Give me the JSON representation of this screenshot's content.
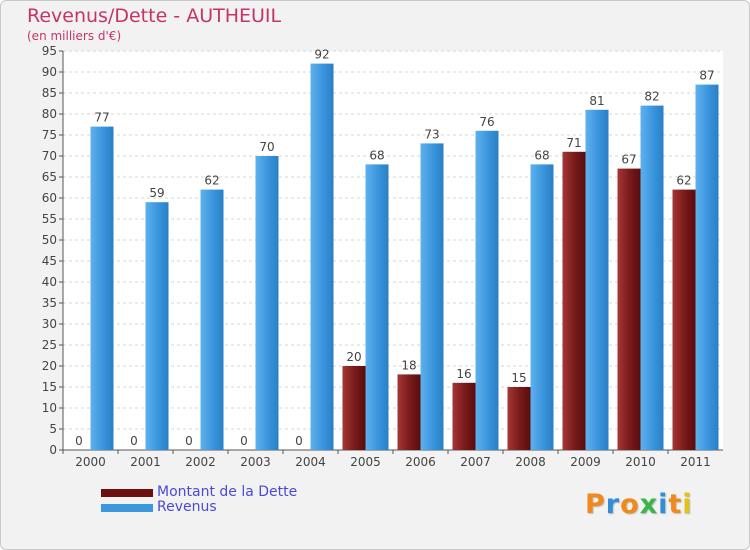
{
  "header": {
    "title": "Revenus/Dette - AUTHEUIL",
    "subtitle": "(en milliers d'€)"
  },
  "chart_data": {
    "type": "bar",
    "title": "Revenus/Dette - AUTHEUIL",
    "subtitle": "(en milliers d'€)",
    "xlabel": "",
    "ylabel": "",
    "ylim": [
      0,
      95
    ],
    "ytick_step": 5,
    "grid": true,
    "legend_position": "bottom-left",
    "categories": [
      "2000",
      "2001",
      "2002",
      "2003",
      "2004",
      "2005",
      "2006",
      "2007",
      "2008",
      "2009",
      "2010",
      "2011"
    ],
    "series": [
      {
        "name": "Montant de la Dette",
        "color": "#7a1a1a",
        "values": [
          0,
          0,
          0,
          0,
          0,
          20,
          18,
          16,
          15,
          71,
          67,
          62
        ]
      },
      {
        "name": "Revenus",
        "color": "#3d97dd",
        "values": [
          77,
          59,
          62,
          70,
          92,
          68,
          73,
          76,
          68,
          81,
          82,
          87
        ]
      }
    ]
  },
  "legend": {
    "items": [
      {
        "label": "Montant de la Dette",
        "color": "#6b0f0f"
      },
      {
        "label": "Revenus",
        "color": "#3d97dd"
      }
    ]
  },
  "logo": {
    "text": "Proxiti",
    "letters": [
      {
        "ch": "P",
        "color": "#f08a1c"
      },
      {
        "ch": "r",
        "color": "#2f8fd8"
      },
      {
        "ch": "o",
        "color": "#f08a1c"
      },
      {
        "ch": "x",
        "color": "#3bb54a"
      },
      {
        "ch": "i",
        "color": "#2f8fd8"
      },
      {
        "ch": "t",
        "color": "#f08a1c"
      },
      {
        "ch": "i",
        "color": "#e0c21a"
      }
    ]
  }
}
